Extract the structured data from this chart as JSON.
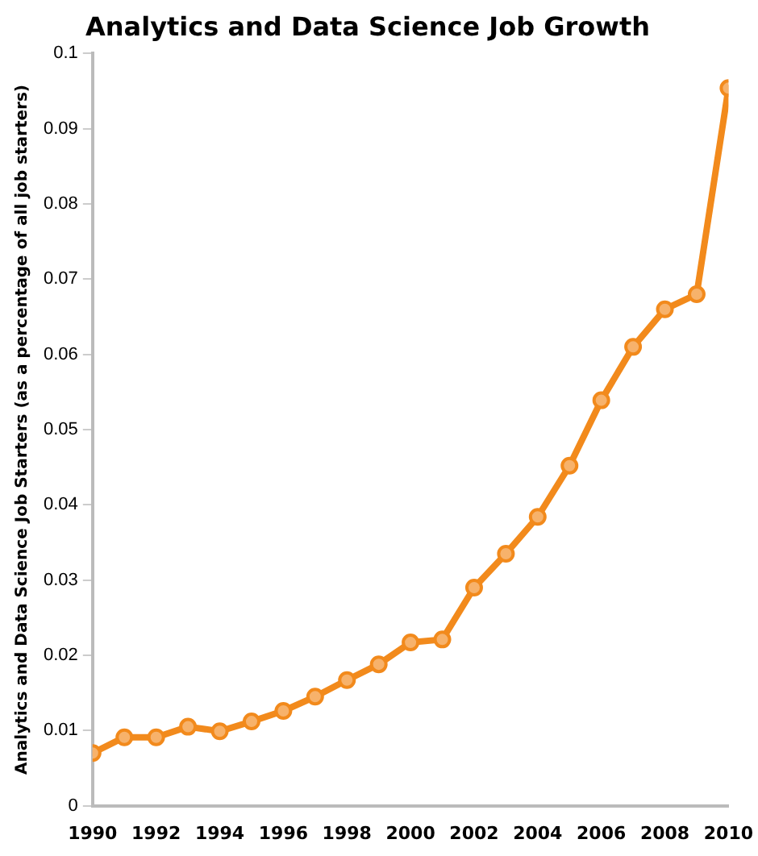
{
  "chart_data": {
    "type": "line",
    "title": "Analytics and Data Science Job Growth",
    "ylabel": "Analytics and Data Science Job Starters (as a percentage of all job starters)",
    "x": [
      1990,
      1991,
      1992,
      1993,
      1994,
      1995,
      1996,
      1997,
      1998,
      1999,
      2000,
      2001,
      2002,
      2003,
      2004,
      2005,
      2006,
      2007,
      2008,
      2009,
      2010
    ],
    "series": [
      {
        "color": "#f28a1c",
        "values": [
          0.007,
          0.0091,
          0.0091,
          0.0105,
          0.0099,
          0.0112,
          0.0126,
          0.0145,
          0.0167,
          0.0188,
          0.0217,
          0.0221,
          0.029,
          0.0335,
          0.0384,
          0.0452,
          0.0539,
          0.061,
          0.066,
          0.068,
          0.0954
        ]
      }
    ],
    "xlim": [
      1990,
      2010
    ],
    "xticks": [
      1990,
      1992,
      1994,
      1996,
      1998,
      2000,
      2002,
      2004,
      2006,
      2008,
      2010
    ],
    "ylim": [
      0,
      0.1
    ],
    "yticks": [
      0,
      0.01,
      0.02,
      0.03,
      0.04,
      0.05,
      0.06,
      0.07,
      0.08,
      0.09,
      0.1
    ],
    "grid": false,
    "legend": false,
    "marker": "circle",
    "line_style": "solid"
  }
}
